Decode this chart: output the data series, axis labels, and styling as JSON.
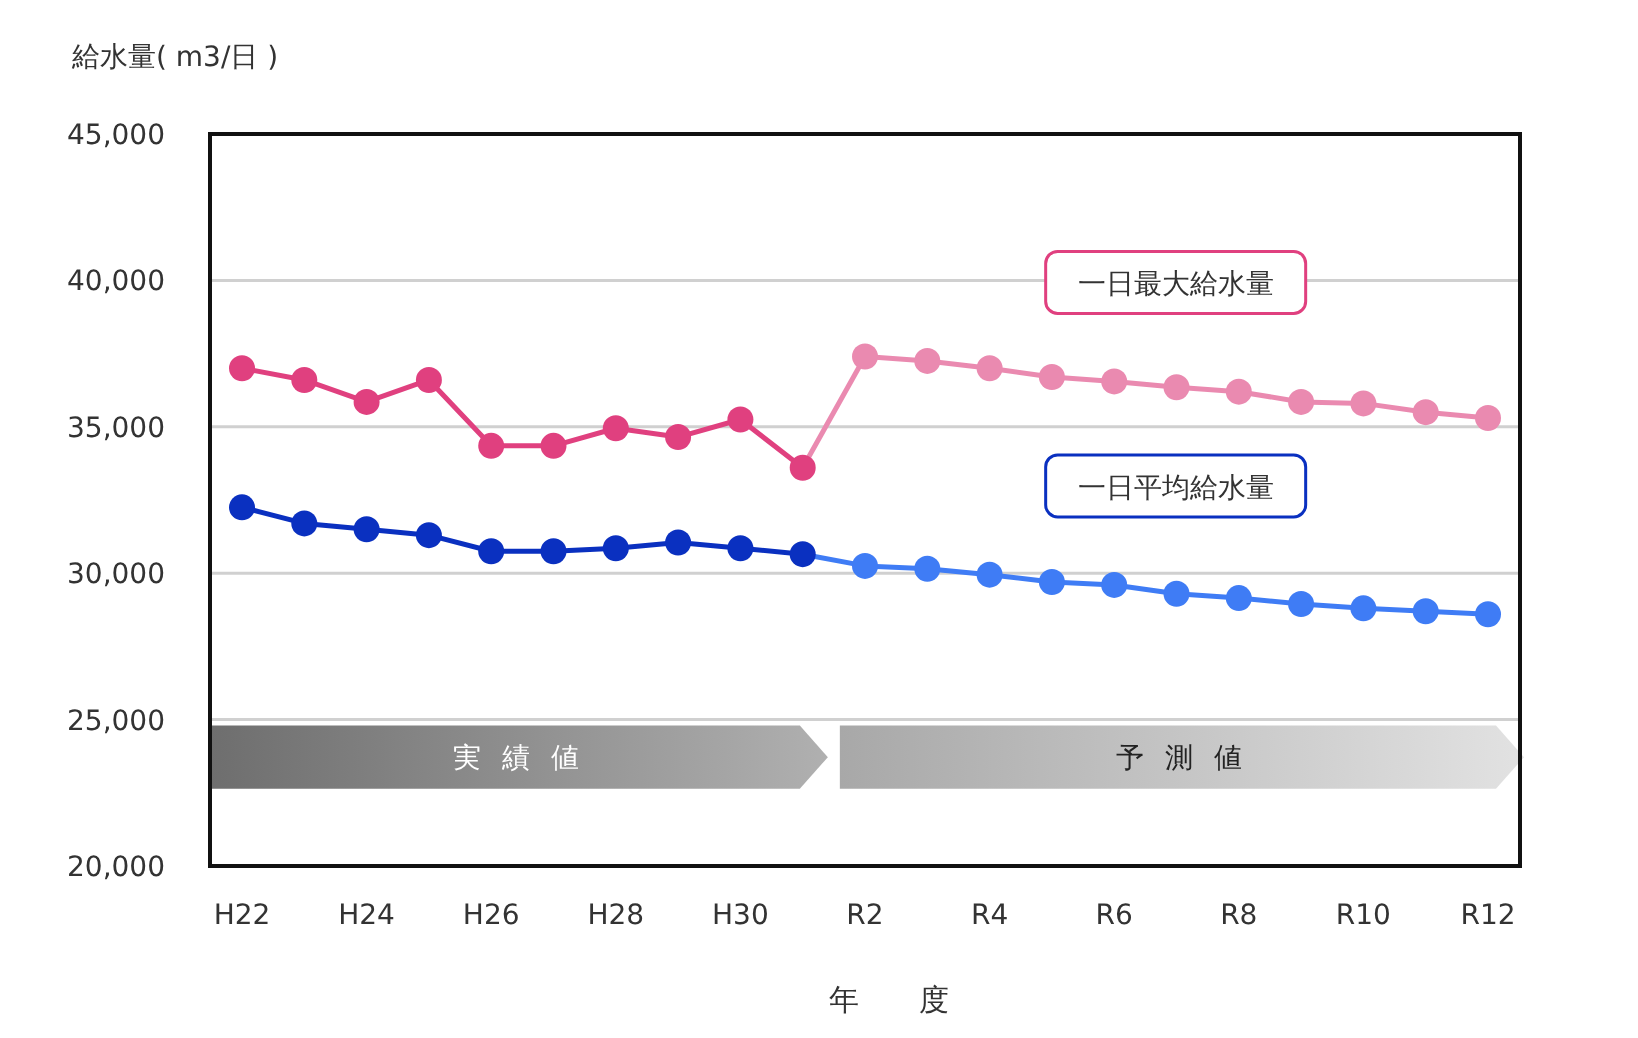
{
  "chart_data": {
    "type": "line",
    "ylabel": "給水量( m3/日 )",
    "xlabel": "年　　度",
    "categories": [
      "H22",
      null,
      "H24",
      null,
      "H26",
      null,
      "H28",
      null,
      "H30",
      null,
      "R2",
      null,
      "R4",
      null,
      "R6",
      null,
      "R8",
      null,
      "R10",
      null,
      "R12"
    ],
    "series": [
      {
        "name": "一日最大給水量",
        "color": "#e0407f",
        "colors": [
          "#e0407f",
          "#e0407f",
          "#e0407f",
          "#e0407f",
          "#e0407f",
          "#e0407f",
          "#e0407f",
          "#e0407f",
          "#e0407f",
          "#e0407f",
          "#ea8ab0",
          "#ea8ab0",
          "#ea8ab0",
          "#ea8ab0",
          "#ea8ab0",
          "#ea8ab0",
          "#ea8ab0",
          "#ea8ab0",
          "#ea8ab0",
          "#ea8ab0",
          "#ea8ab0"
        ],
        "values": [
          37000,
          36600,
          35850,
          36600,
          34350,
          34350,
          34950,
          34650,
          35250,
          33600,
          37400,
          37250,
          37000,
          36700,
          36550,
          36350,
          36200,
          35850,
          35800,
          35500,
          35300
        ]
      },
      {
        "name": "一日平均給水量",
        "color": "#0a30c0",
        "colors": [
          "#0a30c0",
          "#0a30c0",
          "#0a30c0",
          "#0a30c0",
          "#0a30c0",
          "#0a30c0",
          "#0a30c0",
          "#0a30c0",
          "#0a30c0",
          "#0a30c0",
          "#3f7cf5",
          "#3f7cf5",
          "#3f7cf5",
          "#3f7cf5",
          "#3f7cf5",
          "#3f7cf5",
          "#3f7cf5",
          "#3f7cf5",
          "#3f7cf5",
          "#3f7cf5",
          "#3f7cf5"
        ],
        "values": [
          32250,
          31700,
          31500,
          31300,
          30750,
          30750,
          30850,
          31050,
          30850,
          30650,
          30250,
          30150,
          29950,
          29700,
          29600,
          29300,
          29150,
          28950,
          28800,
          28700,
          28600
        ]
      }
    ],
    "ylim": [
      20000,
      45000
    ],
    "yticks": [
      {
        "value": 20000,
        "label": "20,000"
      },
      {
        "value": 25000,
        "label": "25,000"
      },
      {
        "value": 30000,
        "label": "30,000"
      },
      {
        "value": 35000,
        "label": "35,000"
      },
      {
        "value": 40000,
        "label": "40,000"
      },
      {
        "value": 45000,
        "label": "45,000"
      }
    ],
    "grid": "y",
    "marker": "circle",
    "annotations": [
      "実 績 値",
      "予 測 値"
    ]
  }
}
